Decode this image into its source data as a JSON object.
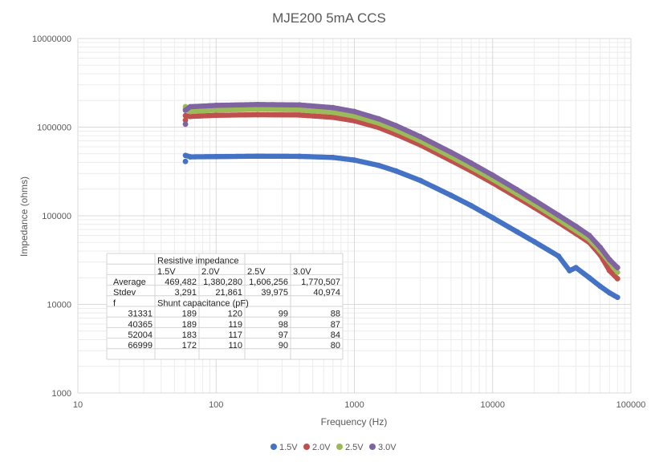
{
  "chart_data": {
    "type": "scatter",
    "title": "MJE200 5mA CCS",
    "xlabel": "Frequency (Hz)",
    "ylabel": "Impedance (ohms)",
    "xscale": "log",
    "yscale": "log",
    "xlim": [
      10,
      100000
    ],
    "ylim": [
      1000,
      10000000
    ],
    "x_ticks": [
      "10",
      "100",
      "1000",
      "10000",
      "100000"
    ],
    "y_ticks": [
      "1000",
      "10000",
      "100000",
      "1000000",
      "10000000"
    ],
    "grid": true,
    "legend_position": "bottom",
    "series": [
      {
        "name": "1.5V",
        "color": "#4472C4",
        "points": [
          [
            60,
            410000
          ],
          [
            60,
            480000
          ],
          [
            65,
            462000
          ],
          [
            100,
            465000
          ],
          [
            200,
            470000
          ],
          [
            400,
            468000
          ],
          [
            700,
            455000
          ],
          [
            1000,
            425000
          ],
          [
            1500,
            370000
          ],
          [
            2000,
            320000
          ],
          [
            3000,
            250000
          ],
          [
            5000,
            170000
          ],
          [
            7000,
            130000
          ],
          [
            10000,
            95000
          ],
          [
            15000,
            66000
          ],
          [
            20000,
            51000
          ],
          [
            30000,
            35000
          ],
          [
            36000,
            24000
          ],
          [
            40000,
            26000
          ],
          [
            50000,
            20000
          ],
          [
            60000,
            16000
          ],
          [
            70000,
            13500
          ],
          [
            80000,
            12000
          ]
        ]
      },
      {
        "name": "2.0V",
        "color": "#C0504D",
        "points": [
          [
            60,
            1200000
          ],
          [
            60,
            1350000
          ],
          [
            65,
            1320000
          ],
          [
            100,
            1360000
          ],
          [
            200,
            1380000
          ],
          [
            400,
            1370000
          ],
          [
            700,
            1290000
          ],
          [
            1000,
            1180000
          ],
          [
            1500,
            990000
          ],
          [
            2000,
            830000
          ],
          [
            3000,
            630000
          ],
          [
            5000,
            420000
          ],
          [
            7000,
            320000
          ],
          [
            10000,
            235000
          ],
          [
            15000,
            162000
          ],
          [
            20000,
            124000
          ],
          [
            30000,
            84000
          ],
          [
            40000,
            63000
          ],
          [
            50000,
            50000
          ],
          [
            60000,
            36000
          ],
          [
            70000,
            24000
          ],
          [
            80000,
            19500
          ]
        ]
      },
      {
        "name": "2.5V",
        "color": "#9BBB59",
        "points": [
          [
            60,
            1700000
          ],
          [
            60,
            1600000
          ],
          [
            65,
            1500000
          ],
          [
            100,
            1560000
          ],
          [
            200,
            1590000
          ],
          [
            400,
            1570000
          ],
          [
            700,
            1470000
          ],
          [
            1000,
            1330000
          ],
          [
            1500,
            1110000
          ],
          [
            2000,
            930000
          ],
          [
            3000,
            700000
          ],
          [
            5000,
            465000
          ],
          [
            7000,
            352000
          ],
          [
            10000,
            258000
          ],
          [
            15000,
            177000
          ],
          [
            20000,
            135000
          ],
          [
            30000,
            91000
          ],
          [
            40000,
            68000
          ],
          [
            50000,
            54000
          ],
          [
            60000,
            40000
          ],
          [
            70000,
            30000
          ],
          [
            80000,
            23000
          ]
        ]
      },
      {
        "name": "3.0V",
        "color": "#8064A2",
        "points": [
          [
            60,
            1080000
          ],
          [
            60,
            1550000
          ],
          [
            65,
            1700000
          ],
          [
            100,
            1760000
          ],
          [
            200,
            1800000
          ],
          [
            400,
            1780000
          ],
          [
            700,
            1660000
          ],
          [
            1000,
            1500000
          ],
          [
            1500,
            1240000
          ],
          [
            2000,
            1040000
          ],
          [
            3000,
            780000
          ],
          [
            5000,
            520000
          ],
          [
            7000,
            392000
          ],
          [
            10000,
            287000
          ],
          [
            15000,
            197000
          ],
          [
            20000,
            150000
          ],
          [
            30000,
            101000
          ],
          [
            40000,
            76000
          ],
          [
            50000,
            60000
          ],
          [
            60000,
            44000
          ],
          [
            70000,
            32000
          ],
          [
            80000,
            26000
          ]
        ]
      }
    ],
    "table": {
      "header_label": "Resistive impedance",
      "columns": [
        "1.5V",
        "2.0V",
        "2.5V",
        "3.0V"
      ],
      "rows": [
        {
          "label": "Average",
          "values": [
            "469,482",
            "1,380,280",
            "1,606,256",
            "1,770,507"
          ]
        },
        {
          "label": "Stdev",
          "values": [
            "3,291",
            "21,861",
            "39,975",
            "40,974"
          ]
        }
      ],
      "freq_label": "f",
      "shunt_label": "Shunt capacitance (pF)",
      "shunt_rows": [
        {
          "f": "31331",
          "values": [
            "189",
            "120",
            "99",
            "88"
          ]
        },
        {
          "f": "40365",
          "values": [
            "189",
            "119",
            "98",
            "87"
          ]
        },
        {
          "f": "52004",
          "values": [
            "183",
            "117",
            "97",
            "84"
          ]
        },
        {
          "f": "66999",
          "values": [
            "172",
            "110",
            "90",
            "80"
          ]
        }
      ]
    }
  }
}
